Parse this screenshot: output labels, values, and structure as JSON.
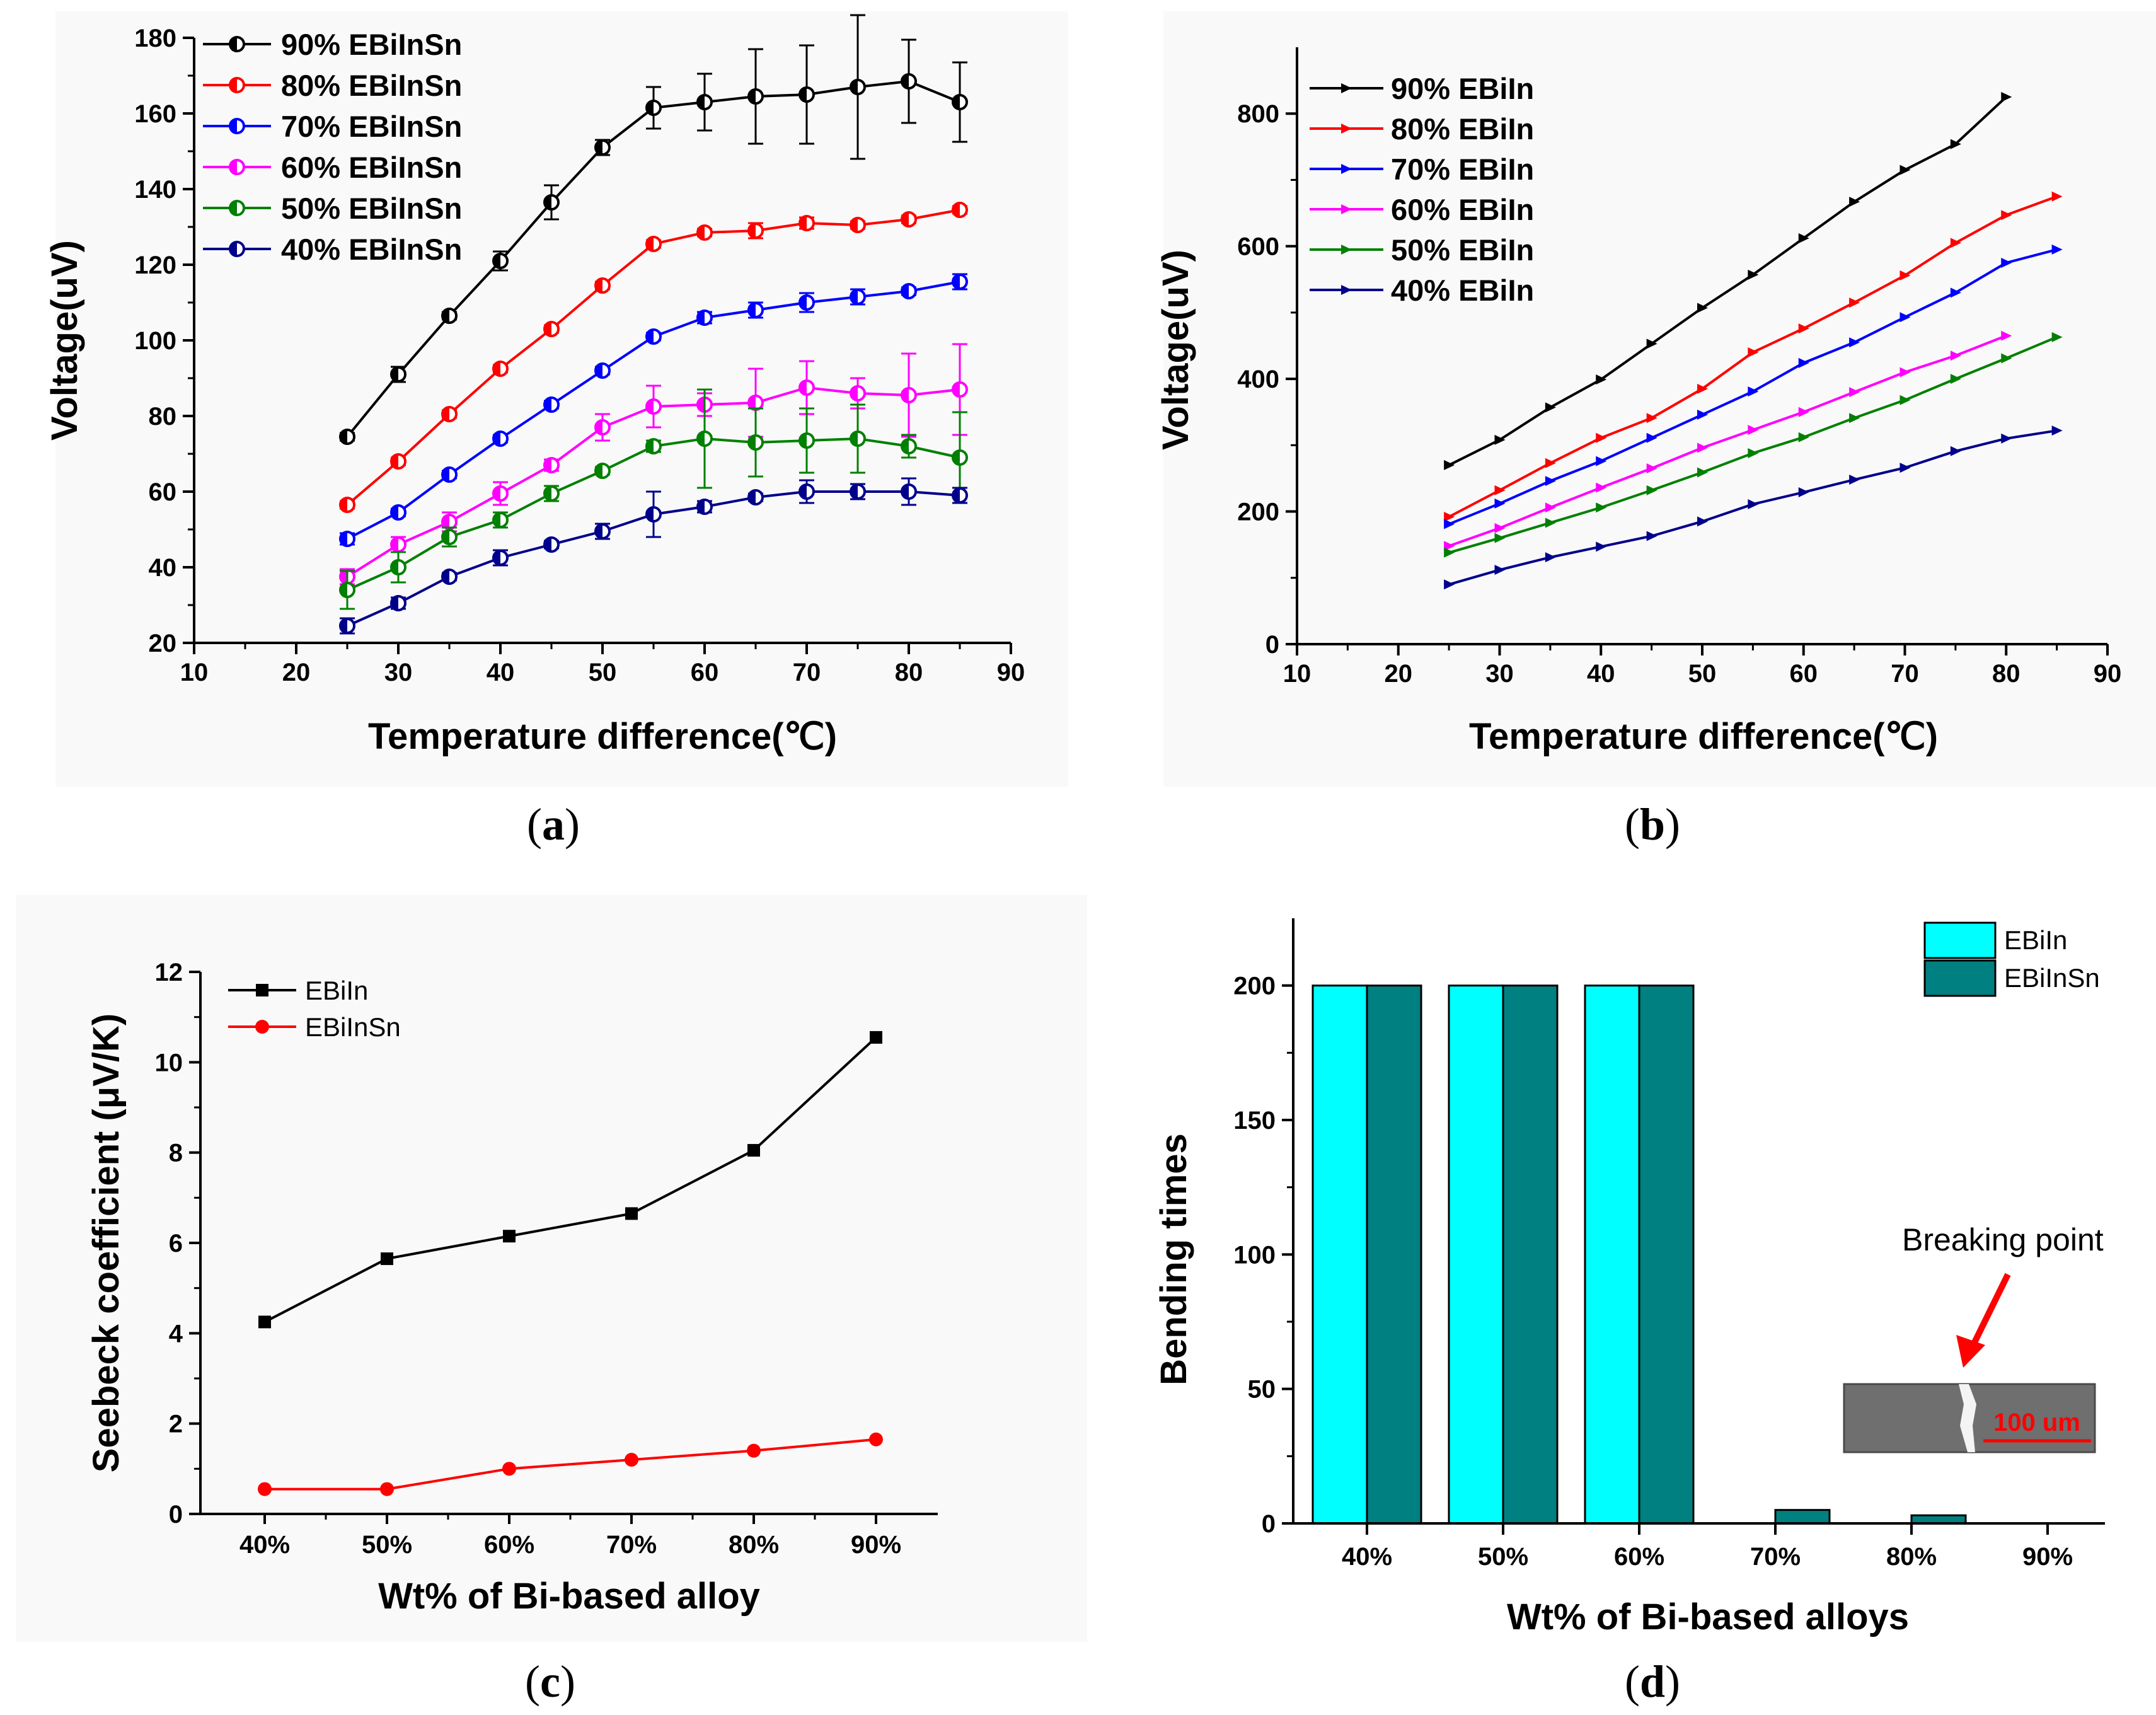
{
  "figure": {
    "captions": [
      {
        "prefix": "(",
        "letter": "a",
        "suffix": ")"
      },
      {
        "prefix": "(",
        "letter": "b",
        "suffix": ")"
      },
      {
        "prefix": "(",
        "letter": "c",
        "suffix": ")"
      },
      {
        "prefix": "(",
        "letter": "d",
        "suffix": ")"
      }
    ]
  },
  "chart_data": [
    {
      "id": "a",
      "type": "line",
      "xlabel": "Temperature difference(℃)",
      "ylabel": "Voltage(uV)",
      "xlim": [
        10,
        90
      ],
      "ylim": [
        20,
        180
      ],
      "xticks": [
        10,
        20,
        30,
        40,
        50,
        60,
        70,
        80,
        90
      ],
      "yticks": [
        20,
        40,
        60,
        80,
        100,
        120,
        140,
        160,
        180
      ],
      "marker": "half-circle",
      "error_bars": true,
      "legend_position": "top-left",
      "x": [
        25,
        30,
        35,
        40,
        45,
        50,
        55,
        60,
        65,
        70,
        75,
        80,
        85
      ],
      "series": [
        {
          "name": "90% EBiInSn",
          "color": "#000000",
          "values": [
            74.5,
            91,
            106.5,
            121,
            136.5,
            151,
            161.5,
            163,
            164.5,
            165,
            167,
            168.5,
            163
          ],
          "errors": [
            1,
            2,
            1,
            2.5,
            4.5,
            2,
            5.5,
            7.5,
            12.5,
            13,
            19,
            11,
            10.5
          ]
        },
        {
          "name": "80% EBiInSn",
          "color": "#ff0000",
          "values": [
            56.5,
            68,
            80.5,
            92.5,
            103,
            114.5,
            125.5,
            128.5,
            129,
            131,
            130.5,
            132,
            134.5
          ],
          "errors": [
            1,
            1,
            1,
            1,
            1,
            1,
            1,
            1,
            2,
            1.5,
            1,
            1,
            1
          ]
        },
        {
          "name": "70% EBiInSn",
          "color": "#0000ff",
          "values": [
            47.5,
            54.5,
            64.5,
            74,
            83,
            92,
            101,
            106,
            108,
            110,
            111.5,
            113,
            115.5
          ],
          "errors": [
            1.5,
            1,
            1,
            1,
            1,
            1,
            1,
            1.5,
            2,
            2.5,
            2,
            1,
            2
          ]
        },
        {
          "name": "60% EBiInSn",
          "color": "#ff00ff",
          "values": [
            37.5,
            46,
            52,
            59.5,
            67,
            77,
            82.5,
            83,
            83.5,
            87.5,
            86,
            85.5,
            87
          ],
          "errors": [
            2,
            2,
            2.5,
            3,
            1.5,
            3.5,
            5.5,
            3,
            9,
            7,
            4,
            11,
            12
          ]
        },
        {
          "name": "50% EBiInSn",
          "color": "#008000",
          "values": [
            34,
            40,
            48,
            52.5,
            59.5,
            65.5,
            72,
            74,
            73,
            73.5,
            74,
            72,
            69
          ],
          "errors": [
            5,
            4,
            2.5,
            2,
            2,
            1,
            1.5,
            13,
            9,
            8.5,
            9,
            3,
            12
          ]
        },
        {
          "name": "40% EBiInSn",
          "color": "#00008b",
          "values": [
            24.5,
            30.5,
            37.5,
            42.5,
            46,
            49.5,
            54,
            56,
            58.5,
            60,
            60,
            60,
            59
          ],
          "errors": [
            2,
            1.5,
            1,
            2,
            1,
            2,
            6,
            1.5,
            1,
            3,
            2,
            3.5,
            2
          ]
        }
      ]
    },
    {
      "id": "b",
      "type": "line",
      "xlabel": "Temperature difference(℃)",
      "ylabel": "Voltage(uV)",
      "xlim": [
        10,
        90
      ],
      "ylim": [
        0,
        900
      ],
      "xticks": [
        10,
        20,
        30,
        40,
        50,
        60,
        70,
        80,
        90
      ],
      "yticks": [
        0,
        200,
        400,
        600,
        800
      ],
      "marker": "triangle-right",
      "legend_position": "top-left",
      "x": [
        25,
        30,
        35,
        40,
        45,
        50,
        55,
        60,
        65,
        70,
        75,
        80,
        85
      ],
      "series": [
        {
          "name": "90% EBiIn",
          "color": "#000000",
          "values": [
            270,
            308,
            357,
            399,
            453,
            507,
            557,
            612,
            667,
            715,
            754,
            825,
            null
          ]
        },
        {
          "name": "80% EBiIn",
          "color": "#ff0000",
          "values": [
            192,
            232,
            273,
            311,
            341,
            385,
            440,
            476,
            515,
            556,
            605,
            647,
            675
          ]
        },
        {
          "name": "70% EBiIn",
          "color": "#0000ff",
          "values": [
            181,
            212,
            246,
            276,
            311,
            346,
            381,
            424,
            455,
            493,
            530,
            575,
            595
          ]
        },
        {
          "name": "60% EBiIn",
          "color": "#ff00ff",
          "values": [
            148,
            175,
            206,
            236,
            265,
            296,
            323,
            350,
            380,
            410,
            435,
            465,
            null
          ]
        },
        {
          "name": "50% EBiIn",
          "color": "#008000",
          "values": [
            138,
            160,
            183,
            206,
            232,
            259,
            288,
            312,
            341,
            368,
            400,
            431,
            463
          ]
        },
        {
          "name": "40% EBiIn",
          "color": "#00008b",
          "values": [
            90,
            112,
            131,
            147,
            163,
            185,
            211,
            229,
            248,
            266,
            291,
            310,
            322
          ]
        }
      ]
    },
    {
      "id": "c",
      "type": "line",
      "xlabel": "Wt% of Bi-based alloy",
      "ylabel": "Seebeck coefficient (μV/K)",
      "ylim": [
        0,
        12
      ],
      "yticks": [
        0,
        2,
        4,
        6,
        8,
        10,
        12
      ],
      "categories": [
        "40%",
        "50%",
        "60%",
        "70%",
        "80%",
        "90%"
      ],
      "legend_position": "top-left",
      "series": [
        {
          "name": "EBiIn",
          "color": "#000000",
          "marker": "square",
          "values": [
            4.25,
            5.65,
            6.15,
            6.65,
            8.05,
            10.55
          ]
        },
        {
          "name": "EBiInSn",
          "color": "#ff0000",
          "marker": "circle",
          "values": [
            0.55,
            0.55,
            1.0,
            1.2,
            1.4,
            1.65
          ]
        }
      ]
    },
    {
      "id": "d",
      "type": "bar",
      "xlabel": "Wt% of Bi-based alloys",
      "ylabel": "Bending times",
      "ylim": [
        0,
        225
      ],
      "yticks": [
        0,
        50,
        100,
        150,
        200
      ],
      "categories": [
        "40%",
        "50%",
        "60%",
        "70%",
        "80%",
        "90%"
      ],
      "legend_position": "top-right",
      "series": [
        {
          "name": "EBiIn",
          "color": "#00ffff",
          "values": [
            200,
            200,
            200,
            0,
            0,
            0
          ]
        },
        {
          "name": "EBiInSn",
          "color": "#008080",
          "values": [
            200,
            200,
            200,
            5,
            3,
            0
          ]
        }
      ],
      "annotations": {
        "label": "Breaking point",
        "scale_bar": "100 um",
        "arrow_color": "#ff0000"
      }
    }
  ]
}
